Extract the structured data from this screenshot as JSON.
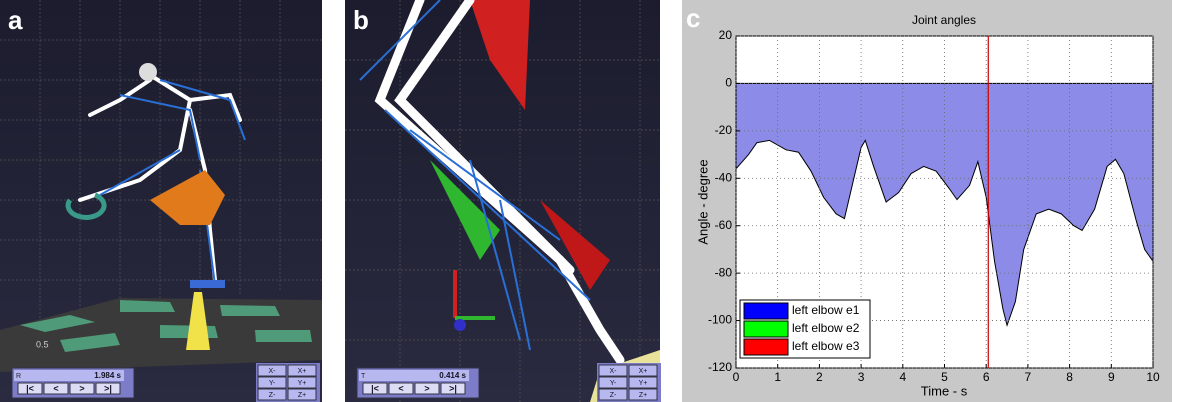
{
  "viewers": [
    {
      "label": "a",
      "slider": "R",
      "time": "1.984 s",
      "scale": "0.5",
      "buttons": [
        "|<",
        "<",
        ">",
        ">|"
      ],
      "axes": [
        "X-",
        "X+",
        "Y-",
        "Y+",
        "Z-",
        "Z+"
      ]
    },
    {
      "label": "b",
      "slider": "T",
      "time": "0.414 s",
      "buttons": [
        "|<",
        "<",
        ">",
        ">|"
      ],
      "axes": [
        "X-",
        "X+",
        "Y-",
        "Y+",
        "Z-",
        "Z+"
      ]
    }
  ],
  "chart_data": {
    "type": "area",
    "panel_label": "c",
    "title": "Joint angles",
    "x_label": "Time - s",
    "y_label": "Angle - degree",
    "x": [
      0,
      0.3,
      0.5,
      0.8,
      1.2,
      1.5,
      1.8,
      2.1,
      2.4,
      2.6,
      2.8,
      3.0,
      3.1,
      3.3,
      3.6,
      3.9,
      4.2,
      4.5,
      4.8,
      5.1,
      5.3,
      5.6,
      5.8,
      6.0,
      6.2,
      6.4,
      6.5,
      6.7,
      6.9,
      7.2,
      7.5,
      7.8,
      8.1,
      8.3,
      8.6,
      8.9,
      9.1,
      9.3,
      9.6,
      9.8,
      10
    ],
    "values": [
      -36,
      -30,
      -25,
      -24,
      -28,
      -29,
      -37,
      -48,
      -55,
      -57,
      -42,
      -27,
      -24,
      -35,
      -50,
      -46,
      -38,
      -35,
      -37,
      -44,
      -49,
      -43,
      -33,
      -48,
      -75,
      -95,
      -102,
      -92,
      -70,
      -55,
      -53,
      -55,
      -60,
      -62,
      -53,
      -35,
      -32,
      -38,
      -58,
      -70,
      -75
    ],
    "fill_color": "#8c8ce8",
    "cursor_x": 6.05,
    "cursor_color": "#cc0000",
    "xlim": [
      0,
      10
    ],
    "ylim": [
      -120,
      20
    ],
    "xticks": [
      0,
      1,
      2,
      3,
      4,
      5,
      6,
      7,
      8,
      9,
      10
    ],
    "yticks": [
      -120,
      -100,
      -80,
      -60,
      -40,
      -20,
      0,
      20
    ],
    "grid": true,
    "legend": {
      "position": "lower left",
      "entries": [
        {
          "name": "left elbow e1",
          "color": "#0000ff"
        },
        {
          "name": "left elbow e2",
          "color": "#00ff00"
        },
        {
          "name": "left elbow e3",
          "color": "#ff0000"
        }
      ]
    }
  }
}
